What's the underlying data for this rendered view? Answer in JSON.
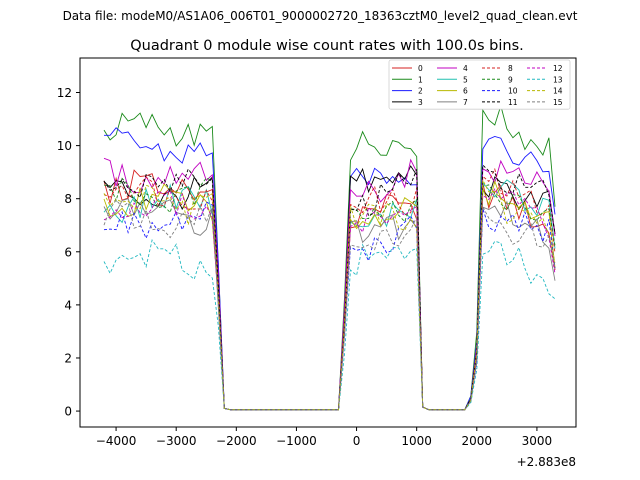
{
  "suptitle": "Data file: modeM0/AS1A06_006T01_9000002720_18363cztM0_level2_quad_clean.evt",
  "chart_data": {
    "type": "line",
    "title": "Quadrant 0 module wise count rates with 100.0s bins.",
    "xlabel": "",
    "ylabel": "",
    "x_offset_text": "+2.883e8",
    "xlim": [
      -4600,
      3650
    ],
    "ylim": [
      -0.6,
      13.3
    ],
    "xticks": [
      -4000,
      -3000,
      -2000,
      -1000,
      0,
      1000,
      2000,
      3000
    ],
    "xtick_labels": [
      "−4000",
      "−3000",
      "−2000",
      "−1000",
      "0",
      "1000",
      "2000",
      "3000"
    ],
    "yticks": [
      0,
      2,
      4,
      6,
      8,
      10,
      12
    ],
    "ytick_labels": [
      "0",
      "2",
      "4",
      "6",
      "8",
      "10",
      "12"
    ],
    "x_segments": [
      {
        "start": -4200,
        "end": -2300
      },
      {
        "start": -200,
        "end": 1000
      },
      {
        "start": 1900,
        "end": 3300
      }
    ],
    "series": [
      {
        "name": "0",
        "color": "#d62020",
        "dash": "solid",
        "base": [
          8.5,
          7.8,
          8.2
        ]
      },
      {
        "name": "1",
        "color": "#1a8a1a",
        "dash": "solid",
        "base": [
          10.6,
          10.3,
          11.3
        ]
      },
      {
        "name": "2",
        "color": "#1a1aff",
        "dash": "solid",
        "base": [
          9.9,
          9.2,
          10.4
        ]
      },
      {
        "name": "3",
        "color": "#000000",
        "dash": "solid",
        "base": [
          8.2,
          9.1,
          8.9
        ]
      },
      {
        "name": "4",
        "color": "#c000c0",
        "dash": "solid",
        "base": [
          8.9,
          8.9,
          9.5
        ]
      },
      {
        "name": "5",
        "color": "#20c0b0",
        "dash": "solid",
        "base": [
          7.9,
          7.5,
          8.6
        ]
      },
      {
        "name": "6",
        "color": "#b8b800",
        "dash": "solid",
        "base": [
          7.8,
          7.6,
          8.3
        ]
      },
      {
        "name": "7",
        "color": "#808080",
        "dash": "solid",
        "base": [
          7.4,
          7.1,
          7.9
        ]
      },
      {
        "name": "8",
        "color": "#d62020",
        "dash": "dashed",
        "base": [
          8.3,
          8.2,
          9.0
        ]
      },
      {
        "name": "9",
        "color": "#1a8a1a",
        "dash": "dashed",
        "base": [
          8.1,
          7.8,
          8.6
        ]
      },
      {
        "name": "10",
        "color": "#1a1aff",
        "dash": "dashed",
        "base": [
          7.1,
          6.8,
          7.6
        ]
      },
      {
        "name": "11",
        "color": "#000000",
        "dash": "dashed",
        "base": [
          8.6,
          8.4,
          9.1
        ]
      },
      {
        "name": "12",
        "color": "#c000c0",
        "dash": "dashed",
        "base": [
          7.6,
          7.5,
          8.2
        ]
      },
      {
        "name": "13",
        "color": "#20b8c0",
        "dash": "dashed",
        "base": [
          5.7,
          6.0,
          6.3
        ]
      },
      {
        "name": "14",
        "color": "#b8b800",
        "dash": "dashed",
        "base": [
          7.8,
          7.6,
          8.2
        ]
      },
      {
        "name": "15",
        "color": "#808080",
        "dash": "dashed",
        "base": [
          7.2,
          7.0,
          7.6
        ]
      }
    ],
    "legend_loc": "upper right",
    "legend_columns": 4
  }
}
